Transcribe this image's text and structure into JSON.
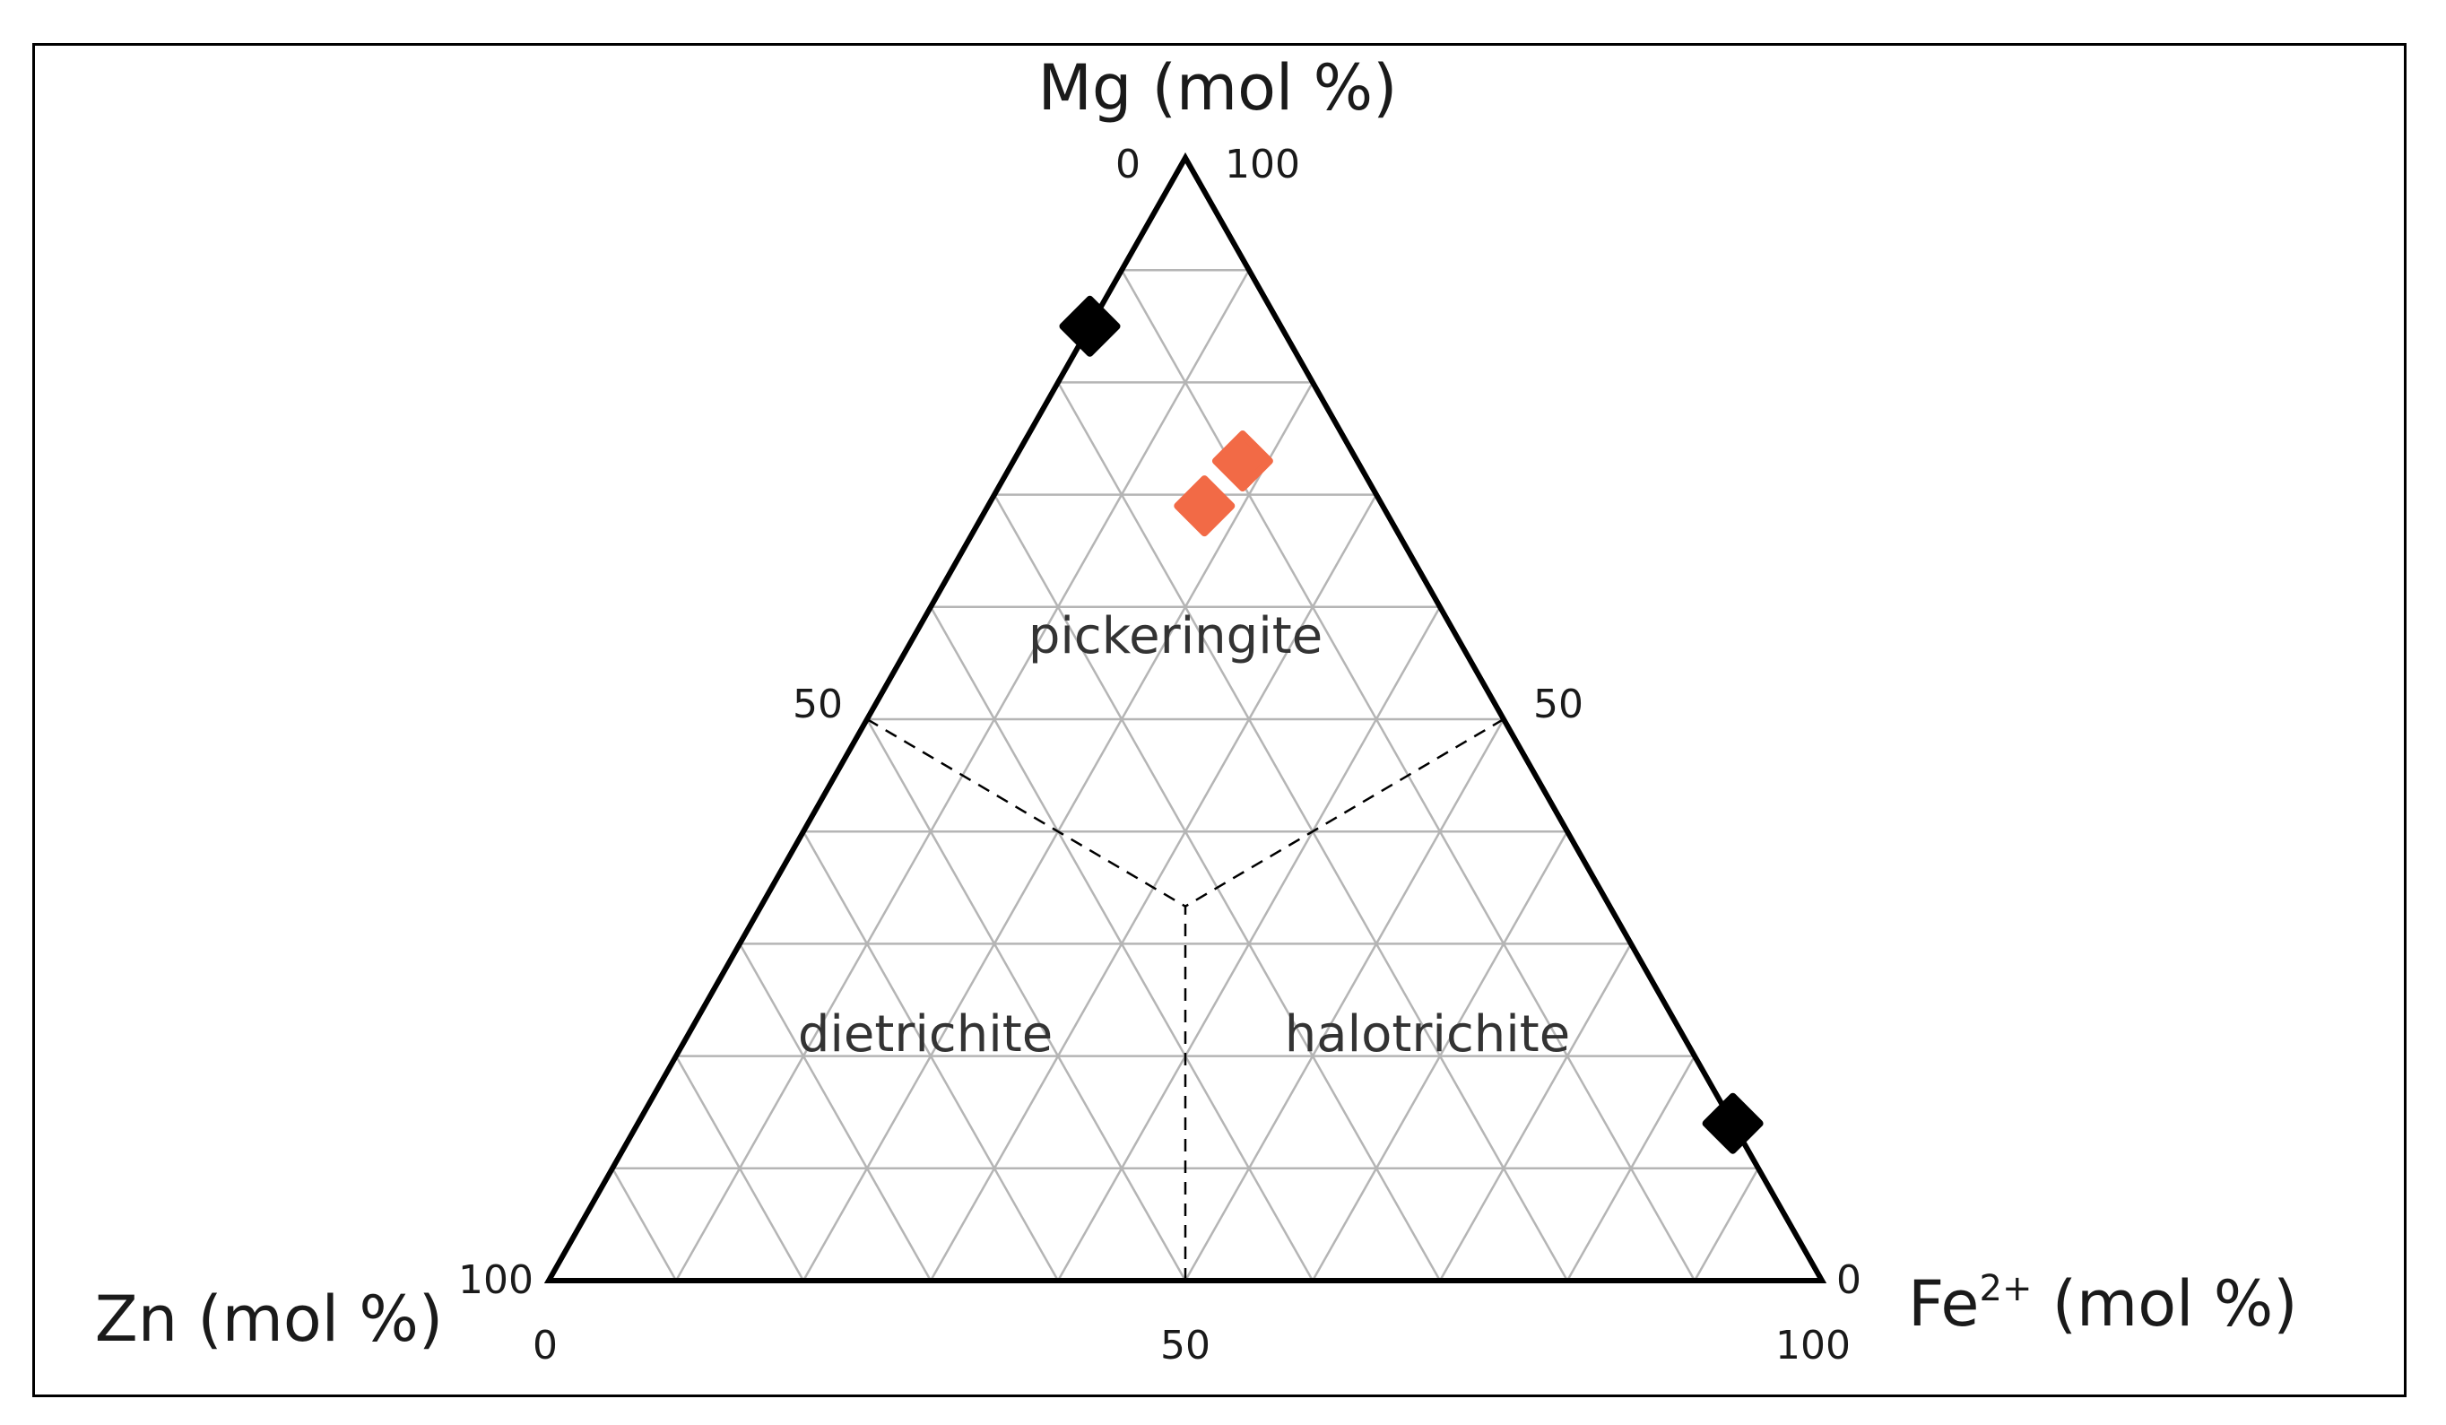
{
  "chart_data": {
    "type": "scatter",
    "subtype": "ternary",
    "title": "",
    "axes": {
      "top": {
        "title": "Mg (mol %)",
        "tick_labels": [
          "0",
          "100",
          "50"
        ]
      },
      "left": {
        "title": "Zn (mol %)",
        "tick_labels": [
          "100",
          "0"
        ]
      },
      "right": {
        "title_main": "Fe",
        "title_sup": "2+",
        "title_tail": " (mol %)",
        "tick_labels": [
          "0",
          "50",
          "100"
        ]
      }
    },
    "gridlines": true,
    "grid_step": 10,
    "regions": [
      {
        "name": "pickeringite"
      },
      {
        "name": "dietrichite"
      },
      {
        "name": "halotrichite"
      }
    ],
    "series": [
      {
        "marker": "diamond",
        "color": "#000000",
        "points": [
          {
            "mg": 85,
            "zn": 15,
            "fe": 0
          },
          {
            "mg": 14,
            "zn": 0,
            "fe": 86
          }
        ]
      },
      {
        "marker": "diamond",
        "color": "#f26a46",
        "points": [
          {
            "mg": 73,
            "zn": 9,
            "fe": 18
          },
          {
            "mg": 69,
            "zn": 14,
            "fe": 17
          }
        ]
      }
    ],
    "colors": {
      "grid": "#b5b5b5",
      "frame": "#000000",
      "black_marker": "#000000",
      "orange_marker": "#f26a46"
    }
  }
}
